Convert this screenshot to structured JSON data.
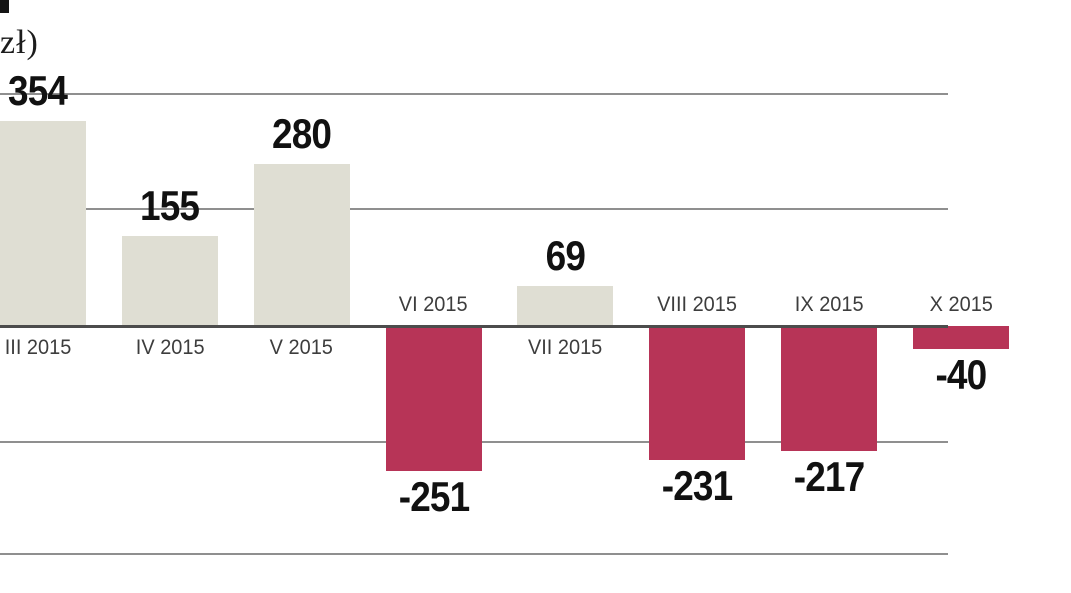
{
  "chart_data": {
    "type": "bar",
    "title": "",
    "unit_label_visible_fragment": "zł)",
    "categories": [
      "III 2015",
      "IV 2015",
      "V 2015",
      "VI 2015",
      "VII 2015",
      "VIII 2015",
      "IX 2015",
      "X 2015"
    ],
    "values": [
      354,
      155,
      280,
      -251,
      69,
      -231,
      -217,
      -40
    ],
    "value_labels": [
      "354",
      "155",
      "280",
      "-251",
      "69",
      "-231",
      "-217",
      "-40"
    ],
    "gridline_values": [
      400,
      200,
      0,
      -200,
      -400
    ],
    "ylim": [
      -430,
      430
    ],
    "grid": true,
    "legend": "none",
    "bar_colors": {
      "positive": "#dfded3",
      "negative": "#b73457"
    }
  },
  "colors": {
    "background": "#ffffff",
    "gridline": "#8f8f8f",
    "zero_axis": "#4c4c4c",
    "value_label": "#111111",
    "month_label": "#3d3d3d",
    "unit_label": "#1c1c1c"
  }
}
